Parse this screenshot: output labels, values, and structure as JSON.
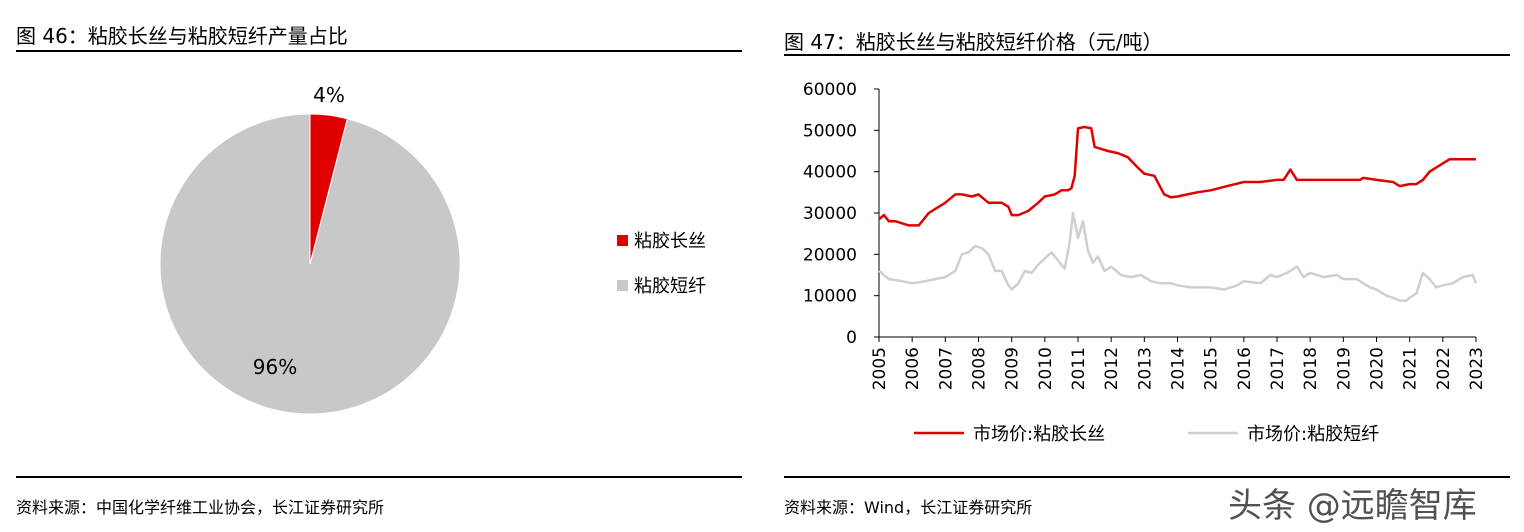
{
  "figures": [
    {
      "title": "图 46：粘胶长丝与粘胶短纤产量占比",
      "source": "资料来源：中国化学纤维工业协会，长江证券研究所"
    },
    {
      "title": "图 47：粘胶长丝与粘胶短纤价格（元/吨）",
      "source": "资料来源：Wind，长江证券研究所"
    }
  ],
  "watermark": "头条 @远瞻智库",
  "colors": {
    "filament": "#e00000",
    "staple": "#c8c8c8",
    "line_staple": "#cfcfcf"
  },
  "chart_data": [
    {
      "type": "pie",
      "title": "图 46：粘胶长丝与粘胶短纤产量占比",
      "slices": [
        {
          "name": "粘胶长丝",
          "value": 4,
          "label": "4%"
        },
        {
          "name": "粘胶短纤",
          "value": 96,
          "label": "96%"
        }
      ],
      "legend_position": "right"
    },
    {
      "type": "line",
      "title": "图 47：粘胶长丝与粘胶短纤价格（元/吨）",
      "ylim": [
        0,
        60000
      ],
      "yticks": [
        0,
        10000,
        20000,
        30000,
        40000,
        50000,
        60000
      ],
      "xlim": [
        2005,
        2023
      ],
      "xticks": [
        "2005",
        "2006",
        "2007",
        "2008",
        "2009",
        "2010",
        "2011",
        "2012",
        "2013",
        "2014",
        "2015",
        "2016",
        "2017",
        "2018",
        "2019",
        "2020",
        "2021",
        "2022",
        "2023"
      ],
      "grid": false,
      "legend_position": "bottom",
      "series": [
        {
          "name": "市场价:粘胶长丝",
          "x": [
            2005.0,
            2005.15,
            2005.3,
            2005.5,
            2005.9,
            2006.2,
            2006.5,
            2006.8,
            2007.0,
            2007.3,
            2007.5,
            2007.8,
            2008.0,
            2008.3,
            2008.5,
            2008.7,
            2008.9,
            2009.0,
            2009.2,
            2009.5,
            2009.8,
            2010.0,
            2010.3,
            2010.5,
            2010.7,
            2010.8,
            2010.9,
            2011.0,
            2011.2,
            2011.4,
            2011.5,
            2011.7,
            2011.9,
            2012.2,
            2012.5,
            2012.8,
            2013.0,
            2013.3,
            2013.6,
            2013.8,
            2014.0,
            2014.3,
            2014.6,
            2015.0,
            2015.5,
            2016.0,
            2016.5,
            2017.0,
            2017.2,
            2017.4,
            2017.6,
            2018.0,
            2018.5,
            2019.0,
            2019.5,
            2019.6,
            2020.0,
            2020.5,
            2020.7,
            2021.0,
            2021.2,
            2021.4,
            2021.6,
            2021.8,
            2022.0,
            2022.2,
            2022.5,
            2022.8,
            2023.0
          ],
          "y": [
            28500,
            29500,
            28000,
            28000,
            27000,
            27000,
            30000,
            31500,
            32500,
            34500,
            34500,
            34000,
            34500,
            32500,
            32500,
            32500,
            31500,
            29500,
            29500,
            30500,
            32500,
            34000,
            34500,
            35500,
            35500,
            36000,
            39000,
            50500,
            50800,
            50500,
            46000,
            45500,
            45000,
            44500,
            43500,
            41000,
            39500,
            39000,
            34500,
            33800,
            34000,
            34500,
            35000,
            35500,
            36500,
            37500,
            37500,
            38000,
            38000,
            40500,
            38000,
            38000,
            38000,
            38000,
            38000,
            38500,
            38000,
            37500,
            36500,
            37000,
            37000,
            38000,
            40000,
            41000,
            42000,
            43000,
            43000,
            43000,
            43000
          ]
        },
        {
          "name": "市场价:粘胶短纤",
          "x": [
            2005.0,
            2005.3,
            2005.7,
            2006.0,
            2006.4,
            2006.7,
            2007.0,
            2007.3,
            2007.5,
            2007.7,
            2007.9,
            2008.1,
            2008.3,
            2008.5,
            2008.7,
            2008.9,
            2009.0,
            2009.2,
            2009.4,
            2009.6,
            2009.8,
            2010.0,
            2010.2,
            2010.4,
            2010.6,
            2010.75,
            2010.85,
            2011.0,
            2011.15,
            2011.3,
            2011.45,
            2011.6,
            2011.8,
            2012.0,
            2012.3,
            2012.6,
            2012.9,
            2013.2,
            2013.5,
            2013.8,
            2014.0,
            2014.4,
            2014.8,
            2015.0,
            2015.4,
            2015.8,
            2016.0,
            2016.5,
            2016.8,
            2017.0,
            2017.3,
            2017.6,
            2017.8,
            2018.0,
            2018.4,
            2018.8,
            2019.0,
            2019.4,
            2019.8,
            2020.0,
            2020.3,
            2020.5,
            2020.7,
            2020.9,
            2021.0,
            2021.2,
            2021.4,
            2021.6,
            2021.8,
            2022.0,
            2022.3,
            2022.6,
            2022.9,
            2023.0
          ],
          "y": [
            16000,
            14000,
            13500,
            13000,
            13500,
            14000,
            14500,
            16000,
            20000,
            20500,
            22000,
            21500,
            20000,
            16000,
            16000,
            12500,
            11500,
            13000,
            16000,
            15500,
            17500,
            19000,
            20500,
            18500,
            16500,
            23000,
            30000,
            24000,
            28000,
            21000,
            18000,
            19500,
            16000,
            17000,
            15000,
            14500,
            15000,
            13500,
            13000,
            13000,
            12500,
            12000,
            12000,
            12000,
            11500,
            12500,
            13500,
            13000,
            15000,
            14500,
            15500,
            17000,
            14500,
            15500,
            14500,
            15000,
            14000,
            14000,
            12000,
            11500,
            10000,
            9500,
            8800,
            8800,
            9500,
            10500,
            15500,
            14000,
            12000,
            12500,
            13000,
            14500,
            15000,
            13000
          ]
        }
      ]
    }
  ]
}
